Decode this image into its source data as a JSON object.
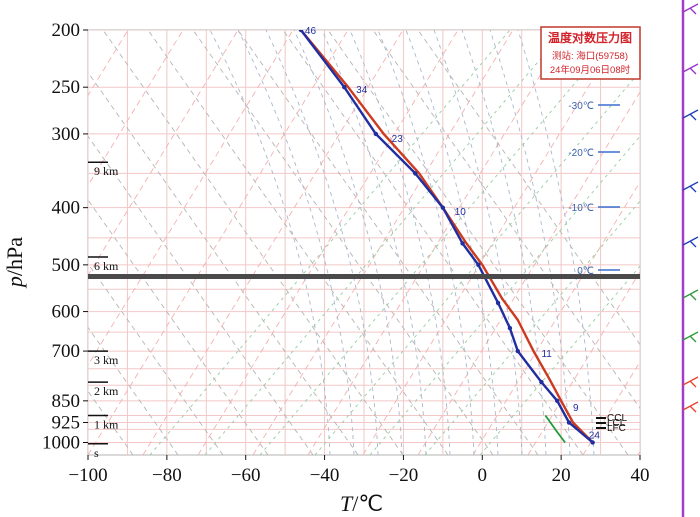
{
  "chart_data": {
    "type": "line",
    "title": "温度对数压力图",
    "station_label": "测站: 海口(59758)",
    "time_label": "24年09月06日08时",
    "xlabel_symbol": "T",
    "xlabel_unit": "/℃",
    "ylabel_symbol": "p",
    "ylabel_unit": "/hPa",
    "x_ticks": [
      "−100",
      "−80",
      "−60",
      "−40",
      "−20",
      "0",
      "20",
      "40"
    ],
    "x_tick_values": [
      -100,
      -80,
      -60,
      -40,
      -20,
      0,
      20,
      40
    ],
    "y_ticks": [
      200,
      250,
      300,
      400,
      500,
      600,
      700,
      850,
      925,
      1000
    ],
    "xlim": [
      -100,
      40
    ],
    "ylim": [
      1050,
      200
    ],
    "y_scale": "log",
    "grid": true,
    "height_markers": [
      {
        "label": "9 km",
        "p": 335
      },
      {
        "label": "6 km",
        "p": 485
      },
      {
        "label": "3 km",
        "p": 700
      },
      {
        "label": "2 km",
        "p": 790
      },
      {
        "label": "1 km",
        "p": 900
      },
      {
        "label": "s",
        "p": 1005
      }
    ],
    "isotherm_labels": [
      "-30℃",
      "-20℃",
      "-10℃",
      "0℃"
    ],
    "isotherm_label_values": [
      -30,
      -20,
      -10,
      0
    ],
    "level_annotations": [
      "CCL",
      "LCL",
      "LFC"
    ],
    "level_annotation_pressures": [
      905,
      918,
      925
    ],
    "series": [
      {
        "name": "",
        "color": "#cc3a1f",
        "points": [
          [
            -46,
            200
          ],
          [
            -34,
            250
          ],
          [
            -25,
            300
          ],
          [
            -16,
            350
          ],
          [
            -10,
            400
          ],
          [
            -4,
            460
          ],
          [
            0,
            500
          ],
          [
            5,
            570
          ],
          [
            9,
            620
          ],
          [
            13,
            700
          ],
          [
            17,
            780
          ],
          [
            20,
            850
          ],
          [
            23,
            925
          ],
          [
            28,
            1000
          ]
        ]
      },
      {
        "name": "",
        "color": "#1f2fa0",
        "points": [
          [
            -46,
            200
          ],
          [
            -35,
            250
          ],
          [
            -27,
            300
          ],
          [
            -17,
            350
          ],
          [
            -10,
            400
          ],
          [
            -5,
            460
          ],
          [
            -1,
            500
          ],
          [
            4,
            580
          ],
          [
            7,
            640
          ],
          [
            9,
            700
          ],
          [
            15,
            790
          ],
          [
            19,
            850
          ],
          [
            22,
            925
          ],
          [
            28,
            1000
          ]
        ]
      },
      {
        "name": "",
        "color": "#1f9a3a",
        "points": [
          [
            16,
            900
          ],
          [
            19,
            960
          ],
          [
            21,
            1000
          ]
        ]
      }
    ],
    "profile_point_labels": [
      {
        "text": "46",
        "t": -46,
        "p": 200
      },
      {
        "text": "34",
        "t": -33,
        "p": 252
      },
      {
        "text": "23",
        "t": -24,
        "p": 305
      },
      {
        "text": "10",
        "t": -8,
        "p": 405
      },
      {
        "text": "11",
        "t": 14,
        "p": 705
      },
      {
        "text": "9",
        "t": 22,
        "p": 870
      },
      {
        "text": "24",
        "t": 26,
        "p": 970
      }
    ],
    "wind_barb_colors": [
      "#9932cc",
      "#1f3fbf",
      "#2e9a3a",
      "#e8412c"
    ]
  }
}
